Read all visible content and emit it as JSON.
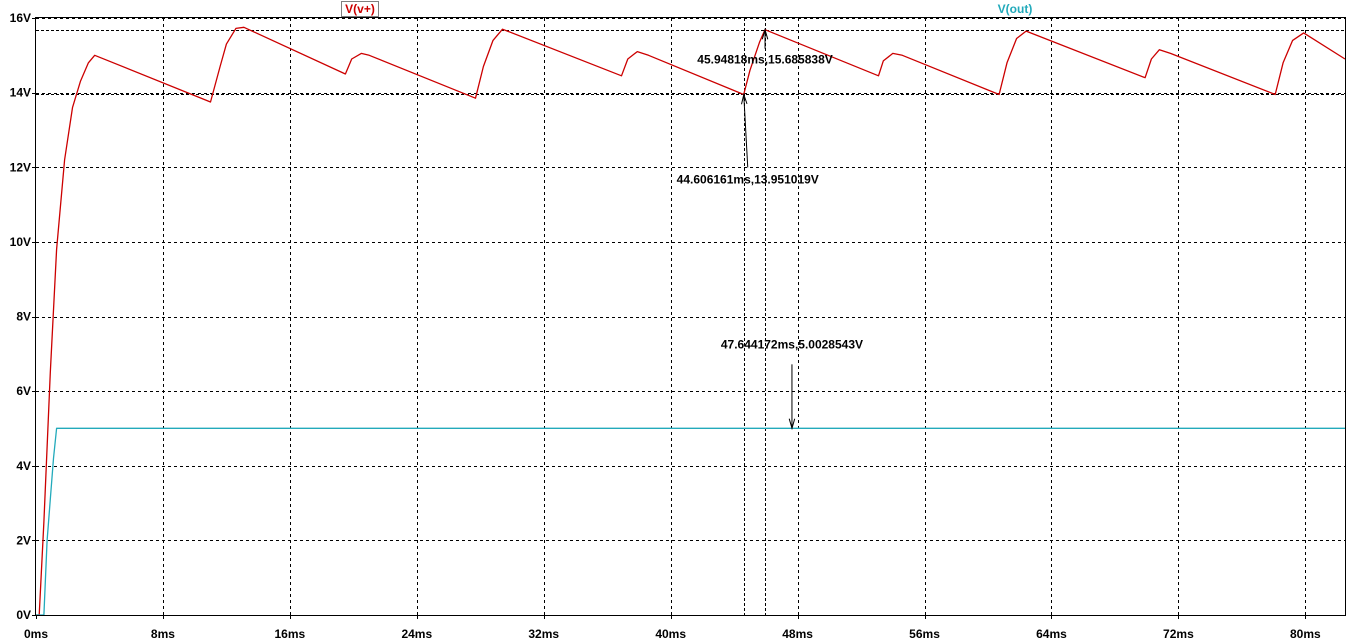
{
  "chart_data": {
    "type": "line",
    "x_unit": "ms",
    "y_unit": "V",
    "xlim": [
      0,
      82.5
    ],
    "ylim": [
      0,
      16
    ],
    "x_ticks": [
      0,
      8,
      16,
      24,
      32,
      40,
      48,
      56,
      64,
      72,
      80
    ],
    "x_tick_labels": [
      "0ms",
      "8ms",
      "16ms",
      "24ms",
      "32ms",
      "40ms",
      "48ms",
      "56ms",
      "64ms",
      "72ms",
      "80ms"
    ],
    "y_ticks": [
      0,
      2,
      4,
      6,
      8,
      10,
      12,
      14,
      16
    ],
    "y_tick_labels": [
      "0V",
      "2V",
      "4V",
      "6V",
      "8V",
      "10V",
      "12V",
      "14V",
      "16V"
    ],
    "grid": true,
    "legend_placement": "top",
    "cursor_levels": [
      13.951019,
      15.685838
    ],
    "cursor_times": [
      44.606161,
      45.94818
    ],
    "series": [
      {
        "name": "V(v+)",
        "color": "#cc0000",
        "x": [
          0.0,
          0.2,
          0.5,
          0.9,
          1.3,
          1.8,
          2.3,
          2.8,
          3.3,
          3.7,
          11.0,
          11.6,
          12.0,
          12.6,
          13.1,
          19.5,
          19.9,
          20.5,
          21.0,
          27.7,
          28.2,
          28.8,
          29.4,
          36.9,
          37.3,
          37.9,
          38.6,
          44.6,
          45.0,
          45.6,
          45.948,
          53.1,
          53.4,
          54.0,
          54.6,
          60.7,
          61.2,
          61.8,
          62.4,
          69.9,
          70.3,
          70.8,
          71.5,
          78.1,
          78.6,
          79.2,
          79.9,
          82.5
        ],
        "y": [
          0.0,
          0.0,
          2.5,
          6.5,
          9.8,
          12.2,
          13.6,
          14.3,
          14.8,
          15.0,
          13.75,
          14.7,
          15.3,
          15.72,
          15.75,
          14.5,
          14.9,
          15.05,
          15.0,
          13.85,
          14.7,
          15.4,
          15.7,
          14.45,
          14.9,
          15.1,
          15.0,
          13.951,
          14.6,
          15.35,
          15.686,
          14.45,
          14.85,
          15.05,
          15.0,
          13.95,
          14.8,
          15.45,
          15.65,
          14.4,
          14.9,
          15.15,
          15.05,
          13.95,
          14.8,
          15.4,
          15.6,
          14.9
        ]
      },
      {
        "name": "V(out)",
        "color": "#22aabb",
        "x": [
          0.0,
          0.5,
          0.7,
          1.1,
          1.3,
          82.5
        ],
        "y": [
          0.0,
          0.0,
          2.0,
          4.2,
          5.0028543,
          5.0028543
        ]
      }
    ],
    "annotations": [
      {
        "text": "45.94818ms,15.685838V",
        "x": 45.94818,
        "y": 15.685838
      },
      {
        "text": "44.606161ms,13.951019V",
        "x": 44.606161,
        "y": 13.951019
      },
      {
        "text": "47.644172ms,5.0028543V",
        "x": 47.644172,
        "y": 5.0028543
      }
    ]
  }
}
